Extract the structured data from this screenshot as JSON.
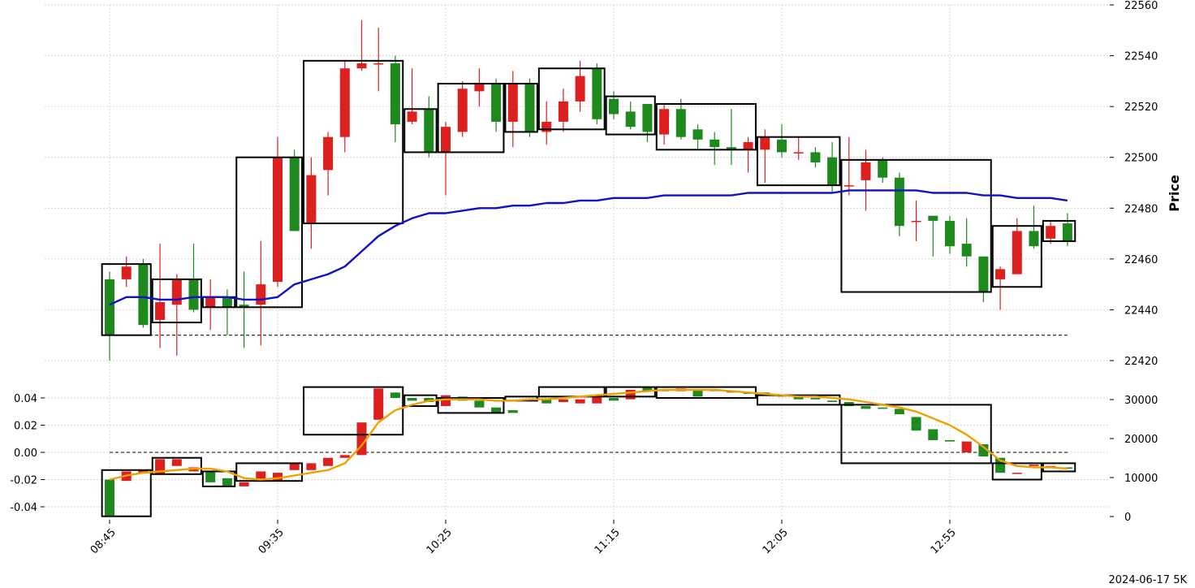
{
  "chart_data": {
    "type": "candlestick",
    "ylabel": "Price",
    "footer": "2024-06-17 5K",
    "x_ticks": [
      "08:45",
      "09:35",
      "10:25",
      "11:15",
      "12:05",
      "12:55"
    ],
    "price_axis": {
      "ylim": [
        22410,
        22560
      ],
      "ticks": [
        22420,
        22440,
        22460,
        22480,
        22500,
        22520,
        22540,
        22560
      ]
    },
    "lower_left_axis": {
      "ylim": [
        -0.05,
        0.05
      ],
      "ticks": [
        "0.04",
        "0.02",
        "0.00",
        "-0.02",
        "-0.04"
      ],
      "tick_values": [
        0.04,
        0.02,
        0.0,
        -0.02,
        -0.04
      ]
    },
    "lower_right_axis": {
      "ylim": [
        0,
        34000
      ],
      "ticks": [
        0,
        10000,
        20000,
        30000
      ]
    },
    "grid": true,
    "colors": {
      "up": "#dc1f1f",
      "down": "#1e8a1e",
      "ma": "#1010c8",
      "lower_ma": "#f0a000",
      "box": "#000000"
    },
    "reference_price": 22430,
    "reference_lower": 0.0,
    "candles": [
      [
        22452,
        22430,
        22455,
        22420
      ],
      [
        22452,
        22457,
        22461,
        22449
      ],
      [
        22458,
        22434,
        22460,
        22433
      ],
      [
        22436,
        22443,
        22466,
        22425
      ],
      [
        22442,
        22452,
        22454,
        22422
      ],
      [
        22452,
        22440,
        22466,
        22439
      ],
      [
        22441,
        22445,
        22452,
        22432
      ],
      [
        22445,
        22441,
        22448,
        22430
      ],
      [
        22442,
        22441,
        22455,
        22425
      ],
      [
        22442,
        22450,
        22467,
        22426
      ],
      [
        22451,
        22500,
        22508,
        22449
      ],
      [
        22500,
        22471,
        22503,
        22471
      ],
      [
        22474,
        22493,
        22500,
        22464
      ],
      [
        22495,
        22508,
        22510,
        22485
      ],
      [
        22508,
        22535,
        22538,
        22502
      ],
      [
        22535,
        22537,
        22554,
        22534
      ],
      [
        22537,
        22537,
        22551,
        22526
      ],
      [
        22537,
        22513,
        22540,
        22506
      ],
      [
        22514,
        22518,
        22535,
        22513
      ],
      [
        22519,
        22502,
        22524,
        22500
      ],
      [
        22502,
        22512,
        22514,
        22485
      ],
      [
        22510,
        22527,
        22530,
        22508
      ],
      [
        22526,
        22529,
        22535,
        22520
      ],
      [
        22529,
        22514,
        22531,
        22510
      ],
      [
        22514,
        22529,
        22534,
        22504
      ],
      [
        22529,
        22510,
        22531,
        22508
      ],
      [
        22510,
        22514,
        22522,
        22505
      ],
      [
        22514,
        22522,
        22527,
        22510
      ],
      [
        22522,
        22532,
        22538,
        22518
      ],
      [
        22535,
        22515,
        22537,
        22513
      ],
      [
        22523,
        22517,
        22526,
        22515
      ],
      [
        22518,
        22512,
        22522,
        22511
      ],
      [
        22521,
        22510,
        22521,
        22506
      ],
      [
        22509,
        22519,
        22521,
        22505
      ],
      [
        22519,
        22508,
        22523,
        22507
      ],
      [
        22511,
        22507,
        22513,
        22503
      ],
      [
        22507,
        22504,
        22510,
        22497
      ],
      [
        22504,
        22503,
        22519,
        22497
      ],
      [
        22503,
        22506,
        22508,
        22494
      ],
      [
        22503,
        22508,
        22511,
        22490
      ],
      [
        22507,
        22502,
        22513,
        22500
      ],
      [
        22502,
        22502,
        22508,
        22499
      ],
      [
        22502,
        22498,
        22504,
        22496
      ],
      [
        22500,
        22489,
        22506,
        22486
      ],
      [
        22489,
        22489,
        22508,
        22485
      ],
      [
        22491,
        22498,
        22503,
        22479
      ],
      [
        22499,
        22492,
        22500,
        22490
      ],
      [
        22492,
        22473,
        22494,
        22469
      ],
      [
        22475,
        22475,
        22483,
        22467
      ],
      [
        22477,
        22475,
        22477,
        22461
      ],
      [
        22475,
        22465,
        22477,
        22462
      ],
      [
        22466,
        22461,
        22476,
        22457
      ],
      [
        22461,
        22447,
        22461,
        22443
      ],
      [
        22452,
        22456,
        22457,
        22440
      ],
      [
        22454,
        22471,
        22476,
        22454
      ],
      [
        22471,
        22465,
        22481,
        22464
      ],
      [
        22468,
        22473,
        22475,
        22466
      ],
      [
        22474,
        22467,
        22478,
        22465
      ]
    ],
    "ma_values": [
      22442,
      22445,
      22445,
      22444,
      22444,
      22445,
      22445,
      22445,
      22444,
      22444,
      22445,
      22450,
      22452,
      22454,
      22457,
      22463,
      22469,
      22473,
      22476,
      22478,
      22478,
      22479,
      22480,
      22480,
      22481,
      22481,
      22482,
      22482,
      22483,
      22483,
      22484,
      22484,
      22484,
      22485,
      22485,
      22485,
      22485,
      22485,
      22486,
      22486,
      22486,
      22486,
      22486,
      22486,
      22487,
      22487,
      22487,
      22487,
      22487,
      22486,
      22486,
      22486,
      22485,
      22485,
      22484,
      22484,
      22484,
      22483
    ],
    "price_boxes": [
      {
        "from": 0,
        "to": 2,
        "top": 22458,
        "bottom": 22430
      },
      {
        "from": 3,
        "to": 5,
        "top": 22452,
        "bottom": 22435
      },
      {
        "from": 6,
        "to": 7,
        "top": 22445,
        "bottom": 22441
      },
      {
        "from": 8,
        "to": 11,
        "top": 22500,
        "bottom": 22441
      },
      {
        "from": 12,
        "to": 17,
        "top": 22538,
        "bottom": 22474
      },
      {
        "from": 18,
        "to": 19,
        "top": 22519,
        "bottom": 22502
      },
      {
        "from": 20,
        "to": 23,
        "top": 22529,
        "bottom": 22502
      },
      {
        "from": 24,
        "to": 25,
        "top": 22529,
        "bottom": 22510
      },
      {
        "from": 26,
        "to": 29,
        "top": 22535,
        "bottom": 22511
      },
      {
        "from": 30,
        "to": 32,
        "top": 22524,
        "bottom": 22509
      },
      {
        "from": 33,
        "to": 38,
        "top": 22521,
        "bottom": 22503
      },
      {
        "from": 39,
        "to": 43,
        "top": 22508,
        "bottom": 22489
      },
      {
        "from": 44,
        "to": 52,
        "top": 22499,
        "bottom": 22447
      },
      {
        "from": 53,
        "to": 55,
        "top": 22473,
        "bottom": 22449
      },
      {
        "from": 56,
        "to": 57,
        "top": 22475,
        "bottom": 22467
      }
    ],
    "lower_values": [
      [
        -0.02,
        -0.047
      ],
      [
        -0.021,
        -0.014
      ],
      [
        -0.015,
        -0.013
      ],
      [
        -0.016,
        -0.005
      ],
      [
        -0.01,
        -0.005
      ],
      [
        -0.014,
        -0.011
      ],
      [
        -0.014,
        -0.022
      ],
      [
        -0.019,
        -0.025
      ],
      [
        -0.025,
        -0.022
      ],
      [
        -0.02,
        -0.014
      ],
      [
        -0.021,
        -0.015
      ],
      [
        -0.013,
        -0.008
      ],
      [
        -0.013,
        -0.008
      ],
      [
        -0.01,
        -0.004
      ],
      [
        -0.004,
        -0.002
      ],
      [
        -0.002,
        0.022
      ],
      [
        0.024,
        0.047
      ],
      [
        0.044,
        0.04
      ],
      [
        0.04,
        0.038
      ],
      [
        0.04,
        0.037
      ],
      [
        0.034,
        0.042
      ],
      [
        0.041,
        0.038
      ],
      [
        0.038,
        0.033
      ],
      [
        0.033,
        0.029
      ],
      [
        0.031,
        0.029
      ],
      [
        0.039,
        0.038
      ],
      [
        0.039,
        0.036
      ],
      [
        0.037,
        0.039
      ],
      [
        0.036,
        0.039
      ],
      [
        0.036,
        0.041
      ],
      [
        0.04,
        0.038
      ],
      [
        0.039,
        0.046
      ],
      [
        0.048,
        0.045
      ],
      [
        0.045,
        0.046
      ],
      [
        0.045,
        0.047
      ],
      [
        0.046,
        0.041
      ],
      [
        0.046,
        0.045
      ],
      [
        0.045,
        0.044
      ],
      [
        0.044,
        0.043
      ],
      [
        0.044,
        0.042
      ],
      [
        0.042,
        0.041
      ],
      [
        0.041,
        0.039
      ],
      [
        0.04,
        0.039
      ],
      [
        0.038,
        0.037
      ],
      [
        0.037,
        0.034
      ],
      [
        0.034,
        0.032
      ],
      [
        0.033,
        0.032
      ],
      [
        0.032,
        0.028
      ],
      [
        0.026,
        0.016
      ],
      [
        0.017,
        0.009
      ],
      [
        0.009,
        0.008
      ],
      [
        0.0,
        0.008
      ],
      [
        0.006,
        -0.003
      ],
      [
        -0.004,
        -0.015
      ],
      [
        -0.015,
        -0.015
      ],
      [
        -0.01,
        -0.009
      ],
      [
        -0.01,
        -0.01
      ],
      [
        -0.011,
        -0.012
      ]
    ],
    "lower_ma_values": [
      -0.02,
      -0.017,
      -0.015,
      -0.014,
      -0.013,
      -0.012,
      -0.012,
      -0.014,
      -0.019,
      -0.02,
      -0.019,
      -0.017,
      -0.015,
      -0.013,
      -0.008,
      0.005,
      0.022,
      0.031,
      0.035,
      0.038,
      0.039,
      0.039,
      0.039,
      0.038,
      0.038,
      0.039,
      0.039,
      0.04,
      0.041,
      0.042,
      0.043,
      0.044,
      0.045,
      0.046,
      0.046,
      0.046,
      0.046,
      0.045,
      0.044,
      0.043,
      0.042,
      0.041,
      0.041,
      0.04,
      0.039,
      0.037,
      0.035,
      0.033,
      0.03,
      0.025,
      0.02,
      0.013,
      0.004,
      -0.006,
      -0.01,
      -0.011,
      -0.011,
      -0.012
    ],
    "lower_boxes": [
      {
        "from": 0,
        "to": 2,
        "top": -0.013,
        "bottom": -0.047
      },
      {
        "from": 3,
        "to": 5,
        "top": -0.004,
        "bottom": -0.016
      },
      {
        "from": 6,
        "to": 7,
        "top": -0.014,
        "bottom": -0.025
      },
      {
        "from": 8,
        "to": 11,
        "top": -0.008,
        "bottom": -0.021
      },
      {
        "from": 12,
        "to": 17,
        "top": 0.048,
        "bottom": 0.013
      },
      {
        "from": 18,
        "to": 19,
        "top": 0.042,
        "bottom": 0.034
      },
      {
        "from": 20,
        "to": 23,
        "top": 0.04,
        "bottom": 0.029
      },
      {
        "from": 24,
        "to": 25,
        "top": 0.041,
        "bottom": 0.038
      },
      {
        "from": 26,
        "to": 29,
        "top": 0.048,
        "bottom": 0.041
      },
      {
        "from": 30,
        "to": 32,
        "top": 0.048,
        "bottom": 0.041
      },
      {
        "from": 33,
        "to": 38,
        "top": 0.048,
        "bottom": 0.04
      },
      {
        "from": 39,
        "to": 43,
        "top": 0.042,
        "bottom": 0.035
      },
      {
        "from": 44,
        "to": 52,
        "top": 0.035,
        "bottom": -0.008
      },
      {
        "from": 53,
        "to": 55,
        "top": -0.008,
        "bottom": -0.02
      },
      {
        "from": 56,
        "to": 57,
        "top": -0.008,
        "bottom": -0.014
      }
    ]
  }
}
